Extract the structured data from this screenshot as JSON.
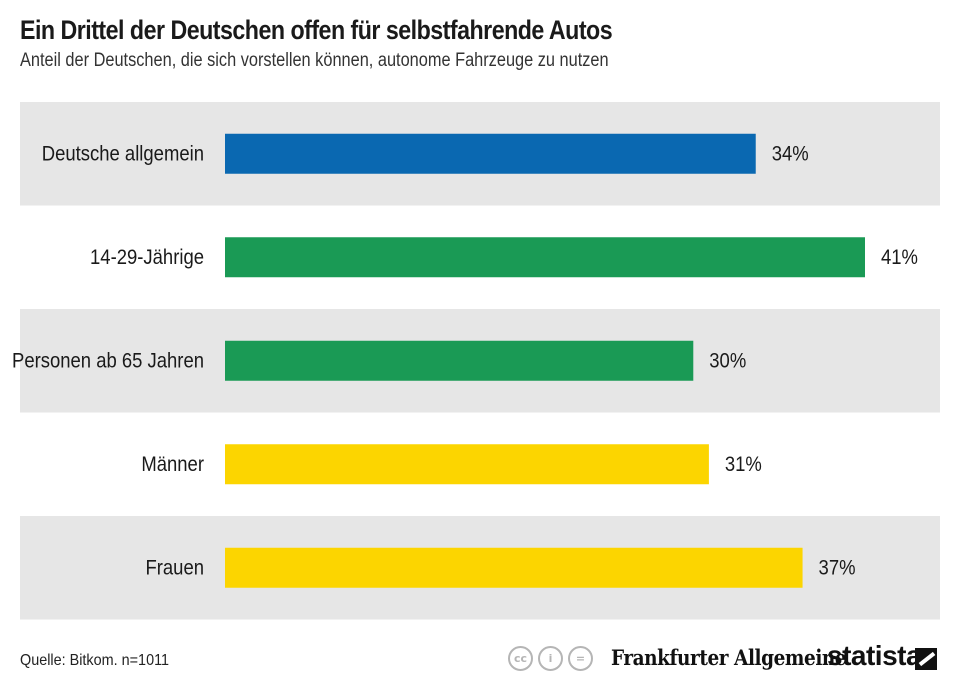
{
  "header": {
    "title": "Ein Drittel der Deutschen offen für selbstfahrende Autos",
    "subtitle": "Anteil der Deutschen, die sich vorstellen können, autonome Fahrzeuge zu nutzen"
  },
  "chart_data": {
    "type": "bar",
    "orientation": "horizontal",
    "categories": [
      "Deutsche allgemein",
      "14-29-Jährige",
      "Personen ab 65 Jahren",
      "Männer",
      "Frauen"
    ],
    "values": [
      34,
      41,
      30,
      31,
      37
    ],
    "value_labels": [
      "34%",
      "41%",
      "30%",
      "31%",
      "37%"
    ],
    "colors": [
      "#0a68b1",
      "#1a9a55",
      "#1a9a55",
      "#fcd500",
      "#fcd500"
    ],
    "row_background": "#e6e6e6",
    "xlim": [
      0,
      41
    ],
    "grid": false,
    "legend": "none"
  },
  "footer": {
    "source": "Quelle: Bitkom. n=1011",
    "cc_icons": [
      "cc-icon",
      "by-icon",
      "nd-icon"
    ],
    "cc_glyphs": [
      "cc",
      "i",
      "="
    ],
    "publisher": "Frankfurter Allgemeine",
    "brand": "statista"
  }
}
